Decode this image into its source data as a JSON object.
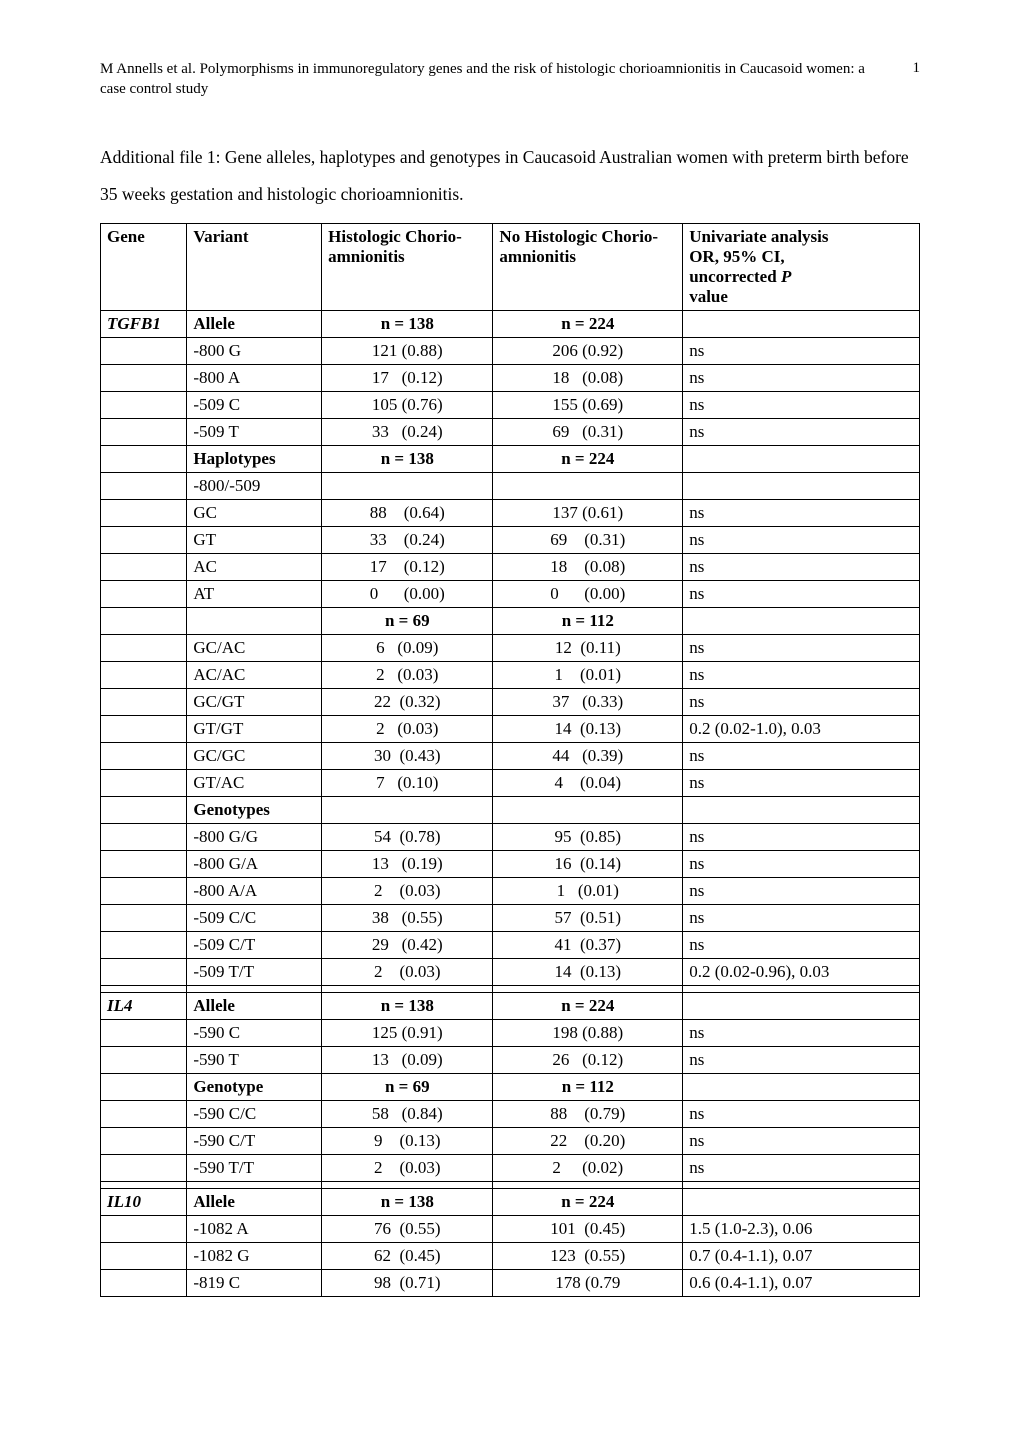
{
  "header": {
    "citation": "M Annells et al. Polymorphisms in immunoregulatory genes and the risk of histologic chorioamnionitis in Caucasoid women: a case control study",
    "page_number": "1"
  },
  "title": "Additional file 1: Gene alleles, haplotypes and genotypes in Caucasoid Australian women with preterm birth before 35 weeks gestation and histologic chorioamnionitis.",
  "table": {
    "headers": {
      "gene": "Gene",
      "variant": "Variant",
      "hc": "Histologic Chorio-amnionitis",
      "nhc": "No Histologic Chorio-amnionitis",
      "uni_l1": "Univariate analysis",
      "uni_l2": "OR, 95% CI,",
      "uni_l3": "uncorrected",
      "uni_l3_it": "P",
      "uni_l4": "value"
    },
    "rows": [
      {
        "gene": "TGFB1",
        "gene_bold_italic": true,
        "variant": "Allele",
        "variant_bold": true,
        "hc": "n = 138",
        "hc_bold": true,
        "nhc": "n = 224",
        "nhc_bold": true,
        "uni": ""
      },
      {
        "gene": "",
        "variant": "-800 G",
        "hc": "121 (0.88)",
        "nhc": "206 (0.92)",
        "uni": "ns"
      },
      {
        "gene": "",
        "variant": "-800 A",
        "hc": "17   (0.12)",
        "nhc": "18   (0.08)",
        "uni": "ns"
      },
      {
        "gene": "",
        "variant": "-509 C",
        "hc": "105 (0.76)",
        "nhc": "155 (0.69)",
        "uni": "ns"
      },
      {
        "gene": "",
        "variant": "-509 T",
        "hc": "33   (0.24)",
        "nhc": "69   (0.31)",
        "uni": "ns"
      },
      {
        "gene": "",
        "variant": "Haplotypes",
        "variant_bold": true,
        "hc": "n = 138",
        "hc_bold": true,
        "nhc": "n = 224",
        "nhc_bold": true,
        "uni": ""
      },
      {
        "gene": "",
        "variant": "-800/-509",
        "hc": "",
        "nhc": "",
        "uni": ""
      },
      {
        "gene": "",
        "variant": "GC",
        "hc": "88    (0.64)",
        "nhc": "137 (0.61)",
        "uni": "ns"
      },
      {
        "gene": "",
        "variant": "GT",
        "hc": "33    (0.24)",
        "nhc": "69    (0.31)",
        "uni": "ns"
      },
      {
        "gene": "",
        "variant": "AC",
        "hc": "17    (0.12)",
        "nhc": "18    (0.08)",
        "uni": "ns"
      },
      {
        "gene": "",
        "variant": "AT",
        "hc": "0      (0.00)",
        "nhc": "0      (0.00)",
        "uni": "ns"
      },
      {
        "gene": "",
        "variant": "",
        "hc": "n = 69",
        "hc_bold": true,
        "nhc": "n = 112",
        "nhc_bold": true,
        "uni": ""
      },
      {
        "gene": "",
        "variant": "GC/AC",
        "hc": "6   (0.09)",
        "nhc": "12  (0.11)",
        "uni": "ns"
      },
      {
        "gene": "",
        "variant": "AC/AC",
        "hc": "2   (0.03)",
        "nhc": "1    (0.01)",
        "uni": "ns"
      },
      {
        "gene": "",
        "variant": "GC/GT",
        "hc": "22  (0.32)",
        "nhc": "37   (0.33)",
        "uni": "ns"
      },
      {
        "gene": "",
        "variant": "GT/GT",
        "hc": "2   (0.03)",
        "nhc": "14  (0.13)",
        "uni": "0.2 (0.02-1.0), 0.03"
      },
      {
        "gene": "",
        "variant": "GC/GC",
        "hc": "30  (0.43)",
        "nhc": "44   (0.39)",
        "uni": "ns"
      },
      {
        "gene": "",
        "variant": "GT/AC",
        "hc": "7   (0.10)",
        "nhc": "4    (0.04)",
        "uni": "ns"
      },
      {
        "gene": "",
        "variant": "Genotypes",
        "variant_bold": true,
        "hc": "",
        "nhc": "",
        "uni": ""
      },
      {
        "gene": "",
        "variant": "-800 G/G",
        "hc": "54  (0.78)",
        "nhc": "95  (0.85)",
        "uni": "ns"
      },
      {
        "gene": "",
        "variant": "-800 G/A",
        "hc": "13   (0.19)",
        "nhc": "16  (0.14)",
        "uni": "ns"
      },
      {
        "gene": "",
        "variant": "-800 A/A",
        "hc": "2    (0.03)",
        "nhc": "1   (0.01)",
        "uni": "ns"
      },
      {
        "gene": "",
        "variant": "-509 C/C",
        "hc": "38   (0.55)",
        "nhc": "57  (0.51)",
        "uni": "ns"
      },
      {
        "gene": "",
        "variant": "-509 C/T",
        "hc": "29   (0.42)",
        "nhc": "41  (0.37)",
        "uni": "ns"
      },
      {
        "gene": "",
        "variant": "-509 T/T",
        "hc": "2    (0.03)",
        "nhc": "14  (0.13)",
        "uni": "0.2 (0.02-0.96), 0.03"
      },
      {
        "gene": "",
        "variant": "",
        "hc": "",
        "nhc": "",
        "uni": ""
      },
      {
        "gene": "IL4",
        "gene_bold_italic": true,
        "variant": "Allele",
        "variant_bold": true,
        "hc": "n = 138",
        "hc_bold": true,
        "nhc": "n = 224",
        "nhc_bold": true,
        "uni": ""
      },
      {
        "gene": "",
        "variant": "-590 C",
        "hc": "125 (0.91)",
        "nhc": "198 (0.88)",
        "uni": "ns"
      },
      {
        "gene": "",
        "variant": "-590 T",
        "hc": "13   (0.09)",
        "nhc": "26   (0.12)",
        "uni": "ns"
      },
      {
        "gene": "",
        "variant": "Genotype",
        "variant_bold": true,
        "hc": "n = 69",
        "hc_bold": true,
        "nhc": "n = 112",
        "nhc_bold": true,
        "uni": ""
      },
      {
        "gene": "",
        "variant": "-590 C/C",
        "hc": "58   (0.84)",
        "nhc": "88    (0.79)",
        "uni": "ns"
      },
      {
        "gene": "",
        "variant": "-590 C/T",
        "hc": "9    (0.13)",
        "nhc": "22    (0.20)",
        "uni": "ns"
      },
      {
        "gene": "",
        "variant": "-590 T/T",
        "hc": "2    (0.03)",
        "nhc": "2     (0.02)",
        "uni": "ns"
      },
      {
        "gene": "",
        "variant": "",
        "hc": "",
        "nhc": "",
        "uni": ""
      },
      {
        "gene": "IL10",
        "gene_bold_italic": true,
        "variant": "Allele",
        "variant_bold": true,
        "hc": "n = 138",
        "hc_bold": true,
        "nhc": "n = 224",
        "nhc_bold": true,
        "uni": ""
      },
      {
        "gene": "",
        "variant": "-1082  A",
        "hc": "76  (0.55)",
        "nhc": "101  (0.45)",
        "uni": "1.5 (1.0-2.3), 0.06"
      },
      {
        "gene": "",
        "variant": "-1082  G",
        "hc": "62  (0.45)",
        "nhc": "123  (0.55)",
        "uni": "0.7 (0.4-1.1), 0.07"
      },
      {
        "gene": "",
        "variant": "-819    C",
        "hc": "98  (0.71)",
        "nhc": "178 (0.79",
        "uni": "0.6 (0.4-1.1), 0.07"
      }
    ]
  }
}
